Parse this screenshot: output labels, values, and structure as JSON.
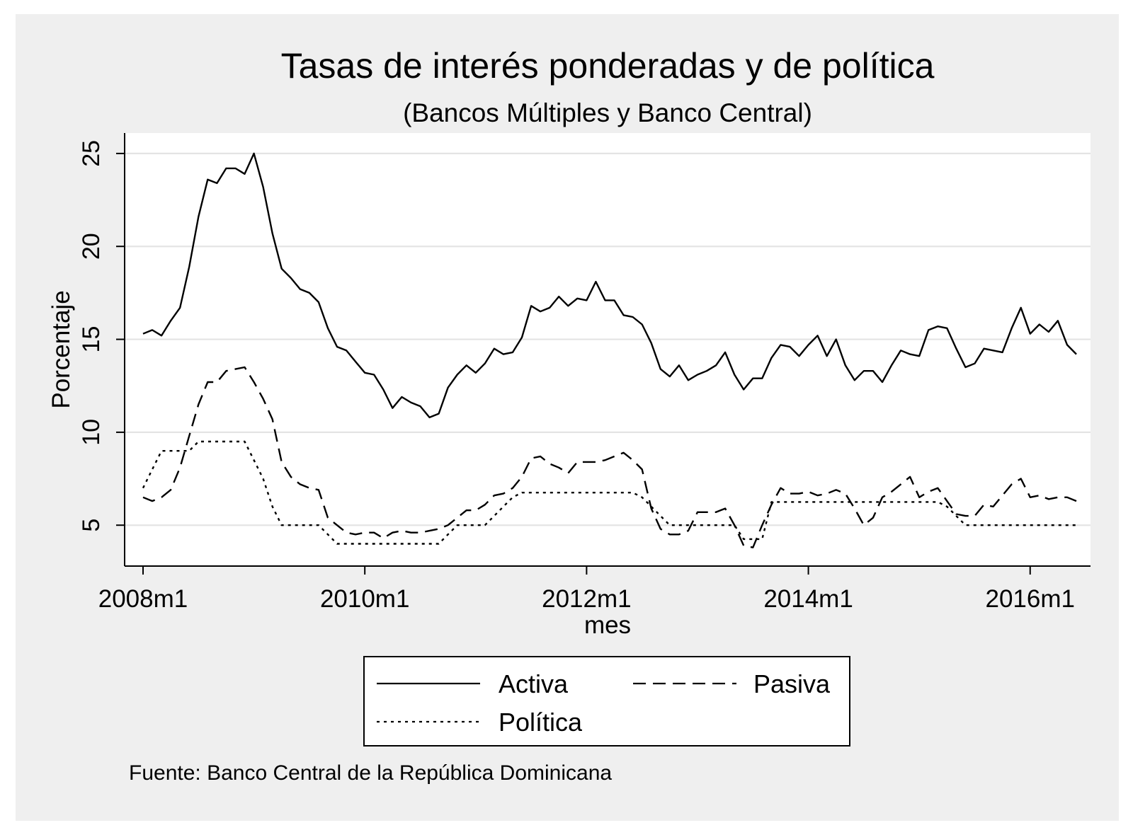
{
  "chart_data": {
    "type": "line",
    "title": "Tasas de interés ponderadas y de política",
    "subtitle": "(Bancos Múltiples y Banco Central)",
    "xlabel": "mes",
    "ylabel": "Porcentaje",
    "ylim": [
      2.8,
      26.1
    ],
    "y_ticks": [
      5,
      10,
      15,
      20,
      25
    ],
    "y_tick_labels": [
      "5",
      "10",
      "15",
      "20",
      "25"
    ],
    "x_ticks": [
      "2008m1",
      "2010m1",
      "2012m1",
      "2014m1",
      "2016m1"
    ],
    "x_tick_labels": [
      "2008m1",
      "2010m1",
      "2012m1",
      "2014m1",
      "2016m1"
    ],
    "x_start": "2008m1",
    "x_end": "2016m6",
    "grid": true,
    "legend_position": "bottom",
    "note": "Fuente: Banco Central de la República Dominicana",
    "colors": {
      "background": "#efefef",
      "plot": "#ffffff",
      "line": "#000000",
      "grid": "#e4e4e4"
    },
    "series": [
      {
        "name": "Activa",
        "dash": "solid",
        "values": [
          15.3,
          15.5,
          15.2,
          16.0,
          16.7,
          18.9,
          21.6,
          23.6,
          23.4,
          24.2,
          24.2,
          23.9,
          25.0,
          23.2,
          20.7,
          18.8,
          18.3,
          17.7,
          17.5,
          17.0,
          15.6,
          14.6,
          14.4,
          13.8,
          13.2,
          13.1,
          12.3,
          11.3,
          11.9,
          11.6,
          11.4,
          10.8,
          11.0,
          12.4,
          13.1,
          13.6,
          13.2,
          13.7,
          14.5,
          14.2,
          14.3,
          15.1,
          16.8,
          16.5,
          16.7,
          17.3,
          16.8,
          17.2,
          17.1,
          18.1,
          17.1,
          17.1,
          16.3,
          16.2,
          15.8,
          14.8,
          13.4,
          13.0,
          13.6,
          12.8,
          13.1,
          13.3,
          13.6,
          14.3,
          13.1,
          12.3,
          12.9,
          12.9,
          14.0,
          14.7,
          14.6,
          14.1,
          14.7,
          15.2,
          14.1,
          15.0,
          13.6,
          12.8,
          13.3,
          13.3,
          12.7,
          13.6,
          14.4,
          14.2,
          14.1,
          15.5,
          15.7,
          15.6,
          14.5,
          13.5,
          13.7,
          14.5,
          14.4,
          14.3,
          15.6,
          16.7,
          15.3,
          15.8,
          15.4,
          16.0,
          14.7,
          14.2
        ]
      },
      {
        "name": "Pasiva",
        "dash": "dashed",
        "values": [
          6.5,
          6.3,
          6.5,
          6.9,
          8.1,
          9.8,
          11.5,
          12.7,
          12.7,
          13.3,
          13.4,
          13.5,
          12.7,
          11.8,
          10.7,
          8.4,
          7.6,
          7.2,
          7.0,
          6.9,
          5.4,
          5.0,
          4.6,
          4.5,
          4.6,
          4.6,
          4.3,
          4.6,
          4.7,
          4.6,
          4.6,
          4.7,
          4.8,
          5.0,
          5.4,
          5.8,
          5.8,
          6.1,
          6.6,
          6.7,
          7.0,
          7.6,
          8.6,
          8.7,
          8.3,
          8.1,
          7.8,
          8.4,
          8.4,
          8.4,
          8.5,
          8.7,
          8.9,
          8.5,
          8.0,
          5.9,
          4.8,
          4.5,
          4.5,
          4.7,
          5.7,
          5.7,
          5.7,
          5.9,
          5.0,
          3.9,
          3.8,
          5.0,
          6.1,
          7.0,
          6.7,
          6.7,
          6.8,
          6.6,
          6.7,
          6.9,
          6.7,
          5.9,
          5.0,
          5.4,
          6.5,
          6.8,
          7.2,
          7.6,
          6.5,
          6.8,
          7.0,
          6.3,
          5.6,
          5.5,
          5.5,
          6.1,
          6.0,
          6.6,
          7.2,
          7.5,
          6.5,
          6.6,
          6.4,
          6.5,
          6.5,
          6.3
        ]
      },
      {
        "name": "Política",
        "dash": "dotted",
        "values": [
          7.0,
          8.0,
          9.0,
          9.0,
          9.0,
          9.0,
          9.5,
          9.5,
          9.5,
          9.5,
          9.5,
          9.5,
          8.5,
          7.5,
          6.0,
          5.0,
          5.0,
          5.0,
          5.0,
          5.0,
          4.5,
          4.0,
          4.0,
          4.0,
          4.0,
          4.0,
          4.0,
          4.0,
          4.0,
          4.0,
          4.0,
          4.0,
          4.0,
          4.5,
          5.0,
          5.0,
          5.0,
          5.0,
          5.5,
          6.0,
          6.5,
          6.75,
          6.75,
          6.75,
          6.75,
          6.75,
          6.75,
          6.75,
          6.75,
          6.75,
          6.75,
          6.75,
          6.75,
          6.75,
          6.5,
          6.0,
          5.5,
          5.0,
          5.0,
          5.0,
          5.0,
          5.0,
          5.0,
          5.0,
          5.0,
          4.25,
          4.25,
          4.25,
          6.25,
          6.25,
          6.25,
          6.25,
          6.25,
          6.25,
          6.25,
          6.25,
          6.25,
          6.25,
          6.25,
          6.25,
          6.25,
          6.25,
          6.25,
          6.25,
          6.25,
          6.25,
          6.25,
          6.0,
          5.5,
          5.0,
          5.0,
          5.0,
          5.0,
          5.0,
          5.0,
          5.0,
          5.0,
          5.0,
          5.0,
          5.0,
          5.0,
          5.0
        ]
      }
    ]
  }
}
